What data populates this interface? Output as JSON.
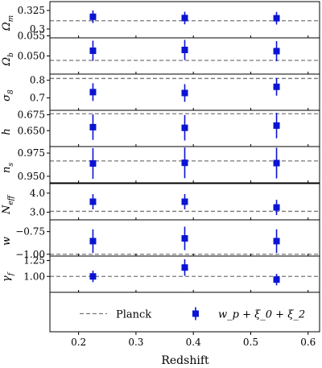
{
  "chart_data": {
    "type": "scatter",
    "xlabel": "Redshift",
    "xlim": [
      0.15,
      0.62
    ],
    "x_ticks": [
      0.2,
      0.3,
      0.4,
      0.5,
      0.6
    ],
    "x_tick_labels": [
      "0.2",
      "0.3",
      "0.4",
      "0.5",
      "0.6"
    ],
    "x": [
      0.225,
      0.385,
      0.545
    ],
    "series_colors": {
      "measurement": "#0a14d2",
      "planck": "#777777"
    },
    "legend": {
      "placement": "bottom",
      "planck_label": "Planck",
      "measurement_label": "w_p + ξ_0 + ξ_2"
    },
    "panels": [
      {
        "id": "omega_m",
        "label": "Ω_m",
        "ylim": [
          0.288,
          0.337
        ],
        "ticks": [
          0.3,
          0.325
        ],
        "tick_labels": [
          "0.3",
          "0.325"
        ],
        "planck": 0.3111,
        "y": [
          0.3165,
          0.3148,
          0.3145
        ],
        "yerr": [
          [
            0.0085,
            0.0085
          ],
          [
            0.0085,
            0.0085
          ],
          [
            0.0085,
            0.0085
          ]
        ]
      },
      {
        "id": "omega_b",
        "label": "Ω_b",
        "ylim": [
          0.0455,
          0.0545
        ],
        "ticks": [
          0.05,
          0.055
        ],
        "tick_labels": [
          "0.050",
          "0.055"
        ],
        "planck": 0.0489,
        "y": [
          0.0513,
          0.0515,
          0.0512
        ],
        "yerr": [
          [
            0.0025,
            0.0025
          ],
          [
            0.0025,
            0.0025
          ],
          [
            0.0025,
            0.0025
          ]
        ]
      },
      {
        "id": "sigma_8",
        "label": "σ_8",
        "ylim": [
          0.63,
          0.835
        ],
        "ticks": [
          0.7,
          0.8
        ],
        "tick_labels": [
          "0.7",
          "0.8"
        ],
        "planck": 0.8102,
        "y": [
          0.733,
          0.728,
          0.763
        ],
        "yerr": [
          [
            0.05,
            0.05
          ],
          [
            0.05,
            0.05
          ],
          [
            0.05,
            0.05
          ]
        ]
      },
      {
        "id": "h",
        "label": "h",
        "ylim": [
          0.625,
          0.682
        ],
        "ticks": [
          0.65,
          0.675
        ],
        "tick_labels": [
          "0.650",
          "0.675"
        ],
        "planck": 0.6766,
        "y": [
          0.6555,
          0.6545,
          0.658
        ],
        "yerr": [
          [
            0.02,
            0.02
          ],
          [
            0.02,
            0.02
          ],
          [
            0.02,
            0.02
          ]
        ]
      },
      {
        "id": "n_s",
        "label": "n_s",
        "ylim": [
          0.943,
          0.982
        ],
        "ticks": [
          0.95,
          0.975
        ],
        "tick_labels": [
          "0.950",
          "0.975"
        ],
        "planck": 0.9665,
        "y": [
          0.9638,
          0.9645,
          0.9642
        ],
        "yerr": [
          [
            0.0165,
            0.0165
          ],
          [
            0.0165,
            0.0165
          ],
          [
            0.0165,
            0.0165
          ]
        ]
      },
      {
        "id": "n_eff",
        "label": "N_eff",
        "ylim": [
          2.6,
          4.5
        ],
        "ticks": [
          3.0,
          4.0
        ],
        "tick_labels": [
          "3.0",
          "4.0"
        ],
        "planck": 3.046,
        "y": [
          3.55,
          3.55,
          3.25
        ],
        "yerr": [
          [
            0.4,
            0.4
          ],
          [
            0.4,
            0.4
          ],
          [
            0.4,
            0.4
          ]
        ]
      },
      {
        "id": "w",
        "label": "w",
        "ylim": [
          -1.02,
          -0.62
        ],
        "ticks": [
          -1.0,
          -0.75
        ],
        "tick_labels": [
          "−1.00",
          "−0.75"
        ],
        "planck": -1.0,
        "y": [
          -0.855,
          -0.825,
          -0.855
        ],
        "yerr": [
          [
            0.13,
            0.13
          ],
          [
            0.13,
            0.13
          ],
          [
            0.13,
            0.13
          ]
        ]
      },
      {
        "id": "gamma_f",
        "label": "γ_f",
        "ylim": [
          0.75,
          1.32
        ],
        "ticks": [
          1.0,
          1.25
        ],
        "tick_labels": [
          "1.00",
          "1.25"
        ],
        "planck": 1.0,
        "y": [
          1.0,
          1.14,
          0.95
        ],
        "yerr": [
          [
            0.09,
            0.09
          ],
          [
            0.13,
            0.13
          ],
          [
            0.09,
            0.09
          ]
        ]
      }
    ]
  }
}
